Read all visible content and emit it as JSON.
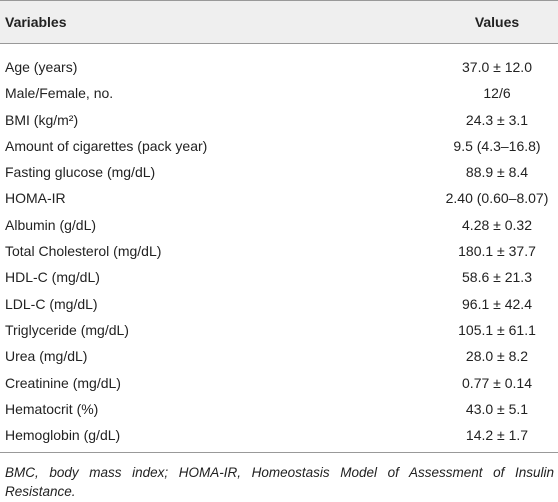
{
  "table": {
    "header": [
      "Variables",
      "Values"
    ],
    "rows": [
      [
        "Age (years)",
        "37.0 ± 12.0"
      ],
      [
        "Male/Female, no.",
        "12/6"
      ],
      [
        "BMI (kg/m²)",
        "24.3 ± 3.1"
      ],
      [
        "Amount of cigarettes (pack year)",
        "9.5 (4.3–16.8)"
      ],
      [
        "Fasting glucose (mg/dL)",
        "88.9 ± 8.4"
      ],
      [
        "HOMA-IR",
        "2.40 (0.60–8.07)"
      ],
      [
        "Albumin (g/dL)",
        "4.28 ± 0.32"
      ],
      [
        "Total Cholesterol (mg/dL)",
        "180.1 ± 37.7"
      ],
      [
        "HDL-C (mg/dL)",
        "58.6 ± 21.3"
      ],
      [
        "LDL-C (mg/dL)",
        "96.1 ± 42.4"
      ],
      [
        "Triglyceride (mg/dL)",
        "105.1 ± 61.1"
      ],
      [
        "Urea (mg/dL)",
        "28.0 ± 8.2"
      ],
      [
        "Creatinine (mg/dL)",
        "0.77 ± 0.14"
      ],
      [
        "Hematocrit (%)",
        "43.0 ± 5.1"
      ],
      [
        "Hemoglobin (g/dL)",
        "14.2 ± 1.7"
      ]
    ],
    "footnote": "BMC, body mass index; HOMA-IR, Homeostasis Model of Assessment of Insulin Resistance."
  }
}
